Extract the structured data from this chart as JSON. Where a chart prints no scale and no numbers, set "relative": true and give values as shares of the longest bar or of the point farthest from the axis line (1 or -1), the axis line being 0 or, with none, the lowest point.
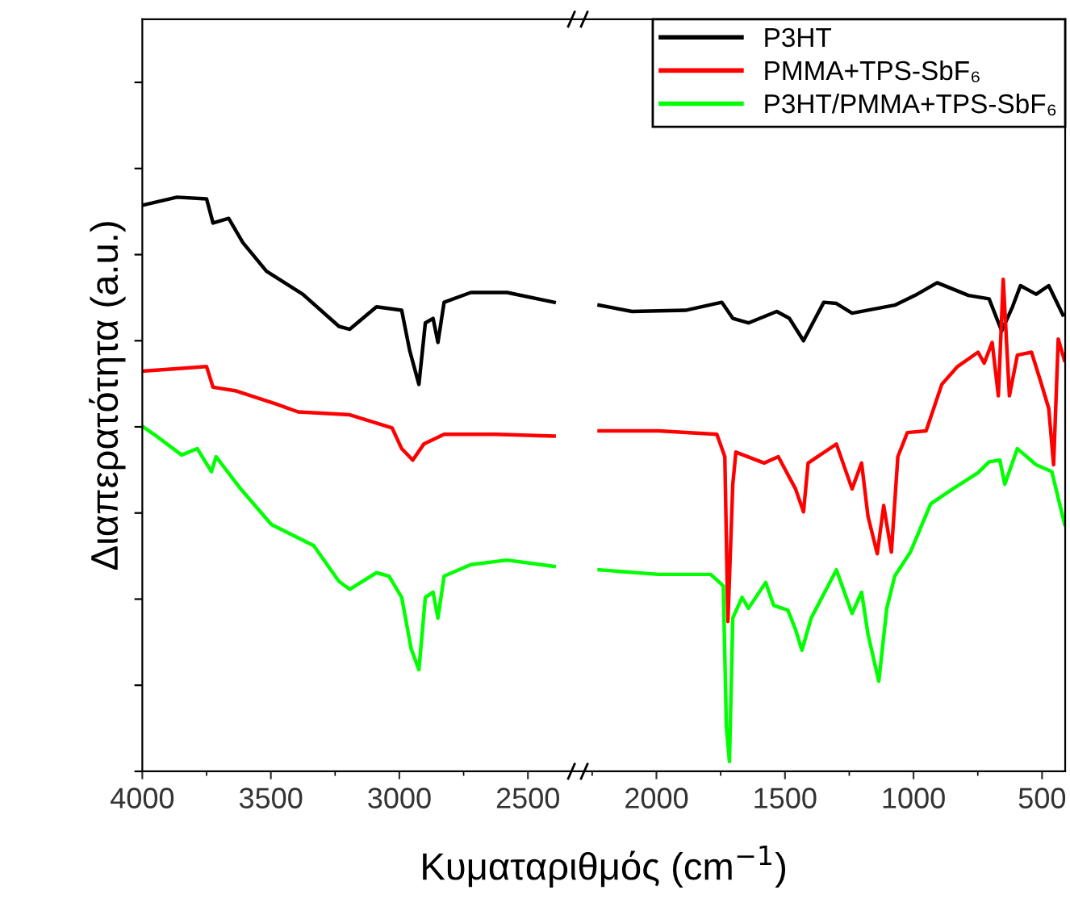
{
  "chart_data": {
    "type": "line",
    "relative": true,
    "ylabel": "Διαπερατότητα (a.u.)",
    "xlabel": "Κυματαριθμός (cm$^{−1}$)",
    "xlim": [
      4000,
      410
    ],
    "xticks": [
      4000,
      3500,
      3000,
      2500,
      2000,
      1500,
      1000,
      500
    ],
    "tick_labels": "x",
    "legend": "top right",
    "series": [
      {
        "name": "P3HT",
        "color": "#000000",
        "x": [
          4000,
          3865,
          3750,
          3725,
          3664,
          3609,
          3517,
          3376,
          3235,
          3193,
          3089,
          2991,
          2960,
          2924,
          2899,
          2869,
          2850,
          2826,
          2722,
          2581,
          2398,
          2310,
          2223,
          2095,
          1887,
          1746,
          1703,
          1642,
          1532,
          1483,
          1428,
          1349,
          1300,
          1239,
          1073,
          994,
          908,
          786,
          706,
          657,
          615,
          584,
          523,
          474,
          419
        ],
        "values": [
          0.986,
          1.0,
          0.997,
          0.955,
          0.963,
          0.921,
          0.871,
          0.831,
          0.775,
          0.77,
          0.809,
          0.803,
          0.733,
          0.674,
          0.781,
          0.789,
          0.747,
          0.817,
          0.834,
          0.834,
          0.817,
          null,
          0.812,
          0.801,
          0.803,
          0.817,
          0.789,
          0.781,
          0.801,
          0.789,
          0.75,
          0.817,
          0.815,
          0.798,
          0.812,
          0.829,
          0.851,
          0.829,
          0.823,
          0.767,
          0.809,
          0.846,
          0.831,
          0.846,
          0.795
        ]
      },
      {
        "name": "PMMA+TPS-SbF₆",
        "color": "#ff0000",
        "x": [
          4000,
          3847,
          3750,
          3725,
          3639,
          3480,
          3394,
          3193,
          3028,
          2991,
          2948,
          2905,
          2826,
          2624,
          2398,
          2310,
          2223,
          1991,
          1765,
          1734,
          1722,
          1703,
          1691,
          1581,
          1526,
          1459,
          1428,
          1410,
          1300,
          1239,
          1202,
          1177,
          1141,
          1116,
          1086,
          1061,
          1024,
          951,
          890,
          829,
          749,
          725,
          694,
          670,
          651,
          627,
          596,
          541,
          504,
          474,
          455,
          437,
          413
        ],
        "values": [
          0.697,
          0.702,
          0.705,
          0.669,
          0.663,
          0.64,
          0.626,
          0.621,
          0.598,
          0.562,
          0.542,
          0.57,
          0.587,
          0.587,
          0.584,
          null,
          0.593,
          0.593,
          0.587,
          0.548,
          0.261,
          0.5,
          0.556,
          0.537,
          0.548,
          0.492,
          0.452,
          0.537,
          0.57,
          0.492,
          0.537,
          0.444,
          0.379,
          0.463,
          0.382,
          0.548,
          0.59,
          0.593,
          0.674,
          0.705,
          0.73,
          0.711,
          0.747,
          0.654,
          0.857,
          0.654,
          0.725,
          0.73,
          0.677,
          0.632,
          0.534,
          0.753,
          0.716
        ]
      },
      {
        "name": "P3HT/PMMA+TPS-SbF₆",
        "color": "#00ff00",
        "x": [
          4000,
          3945,
          3847,
          3786,
          3731,
          3713,
          3621,
          3498,
          3333,
          3235,
          3193,
          3089,
          3040,
          2991,
          2954,
          2924,
          2899,
          2869,
          2850,
          2826,
          2722,
          2581,
          2398,
          2310,
          2223,
          1991,
          1789,
          1740,
          1728,
          1716,
          1703,
          1667,
          1642,
          1575,
          1544,
          1489,
          1459,
          1434,
          1398,
          1300,
          1239,
          1202,
          1177,
          1135,
          1104,
          1073,
          1012,
          933,
          847,
          749,
          706,
          664,
          645,
          596,
          523,
          462,
          412
        ],
        "values": [
          0.601,
          0.584,
          0.551,
          0.562,
          0.522,
          0.548,
          0.494,
          0.43,
          0.393,
          0.331,
          0.317,
          0.346,
          0.34,
          0.303,
          0.213,
          0.177,
          0.303,
          0.312,
          0.267,
          0.34,
          0.36,
          0.368,
          0.357,
          null,
          0.351,
          0.343,
          0.343,
          0.323,
          0.079,
          0.017,
          0.267,
          0.303,
          0.284,
          0.329,
          0.289,
          0.281,
          0.247,
          0.211,
          0.267,
          0.351,
          0.275,
          0.312,
          0.239,
          0.157,
          0.284,
          0.34,
          0.382,
          0.466,
          0.492,
          0.52,
          0.539,
          0.542,
          0.5,
          0.562,
          0.534,
          0.522,
          0.43
        ]
      }
    ]
  }
}
